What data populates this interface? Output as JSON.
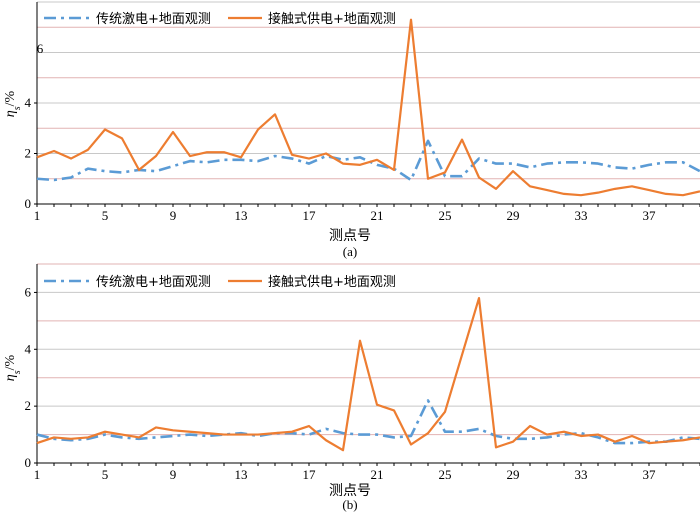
{
  "chart_data": [
    {
      "type": "line",
      "caption": "(a)",
      "xlabel": "测点号",
      "ylabel": "ηs/%",
      "ylabel_main": "η",
      "ylabel_sub": "s",
      "ylabel_unit": "/%",
      "stray_label": "6",
      "ylim": [
        0,
        8
      ],
      "yticks": [
        0,
        2,
        4
      ],
      "xlim": [
        1,
        40
      ],
      "xticks": [
        1,
        5,
        9,
        13,
        17,
        21,
        25,
        29,
        33,
        37
      ],
      "grid": "horizontal",
      "legend": "top-left",
      "series": [
        {
          "name": "传统激电+地面观测",
          "color": "#5b9bd5",
          "style": "dash-dot",
          "x": [
            1,
            2,
            3,
            4,
            5,
            6,
            7,
            8,
            9,
            10,
            11,
            12,
            13,
            14,
            15,
            16,
            17,
            18,
            19,
            20,
            21,
            22,
            23,
            24,
            25,
            26,
            27,
            28,
            29,
            30,
            31,
            32,
            33,
            34,
            35,
            36,
            37,
            38,
            39,
            40
          ],
          "y": [
            1.0,
            0.95,
            1.05,
            1.4,
            1.3,
            1.25,
            1.35,
            1.3,
            1.5,
            1.7,
            1.65,
            1.75,
            1.75,
            1.7,
            1.9,
            1.8,
            1.6,
            1.9,
            1.75,
            1.85,
            1.55,
            1.4,
            0.95,
            2.5,
            1.1,
            1.1,
            1.8,
            1.6,
            1.6,
            1.45,
            1.6,
            1.65,
            1.65,
            1.6,
            1.45,
            1.4,
            1.55,
            1.65,
            1.65,
            1.3
          ]
        },
        {
          "name": "接触式供电+地面观测",
          "color": "#ed7d31",
          "style": "solid",
          "x": [
            1,
            2,
            3,
            4,
            5,
            6,
            7,
            8,
            9,
            10,
            11,
            12,
            13,
            14,
            15,
            16,
            17,
            18,
            19,
            20,
            21,
            22,
            23,
            24,
            25,
            26,
            27,
            28,
            29,
            30,
            31,
            32,
            33,
            34,
            35,
            36,
            37,
            38,
            39,
            40
          ],
          "y": [
            1.85,
            2.1,
            1.8,
            2.15,
            2.95,
            2.6,
            1.35,
            1.9,
            2.85,
            1.9,
            2.05,
            2.05,
            1.85,
            2.95,
            3.55,
            1.95,
            1.8,
            2.0,
            1.6,
            1.55,
            1.75,
            1.35,
            7.3,
            1.0,
            1.25,
            2.55,
            1.05,
            0.6,
            1.3,
            0.7,
            0.55,
            0.4,
            0.35,
            0.45,
            0.6,
            0.7,
            0.55,
            0.4,
            0.35,
            0.5
          ]
        }
      ]
    },
    {
      "type": "line",
      "caption": "(b)",
      "xlabel": "测点号",
      "ylabel": "ηs/%",
      "ylabel_main": "η",
      "ylabel_sub": "s",
      "ylabel_unit": "/%",
      "ylim": [
        0,
        7
      ],
      "yticks": [
        0,
        2,
        4,
        6
      ],
      "xlim": [
        1,
        40
      ],
      "xticks": [
        1,
        5,
        9,
        13,
        17,
        21,
        25,
        29,
        33,
        37
      ],
      "grid": "horizontal",
      "legend": "top-left",
      "series": [
        {
          "name": "传统激电+地面观测",
          "color": "#5b9bd5",
          "style": "dash-dot",
          "x": [
            1,
            2,
            3,
            4,
            5,
            6,
            7,
            8,
            9,
            10,
            11,
            12,
            13,
            14,
            15,
            16,
            17,
            18,
            19,
            20,
            21,
            22,
            23,
            24,
            25,
            26,
            27,
            28,
            29,
            30,
            31,
            32,
            33,
            34,
            35,
            36,
            37,
            38,
            39,
            40
          ],
          "y": [
            1.0,
            0.85,
            0.8,
            0.85,
            1.0,
            0.9,
            0.85,
            0.9,
            0.95,
            1.0,
            0.95,
            1.0,
            1.05,
            0.95,
            1.05,
            1.05,
            1.0,
            1.2,
            1.05,
            1.0,
            1.0,
            0.9,
            0.95,
            2.2,
            1.1,
            1.1,
            1.2,
            0.95,
            0.85,
            0.85,
            0.9,
            1.0,
            1.05,
            0.9,
            0.7,
            0.7,
            0.75,
            0.75,
            0.9,
            0.85
          ]
        },
        {
          "name": "接触式供电+地面观测",
          "color": "#ed7d31",
          "style": "solid",
          "x": [
            1,
            2,
            3,
            4,
            5,
            6,
            7,
            8,
            9,
            10,
            11,
            12,
            13,
            14,
            15,
            16,
            17,
            18,
            19,
            20,
            21,
            22,
            23,
            24,
            25,
            26,
            27,
            28,
            29,
            30,
            31,
            32,
            33,
            34,
            35,
            36,
            37,
            38,
            39,
            40
          ],
          "y": [
            0.7,
            0.9,
            0.85,
            0.9,
            1.1,
            1.0,
            0.9,
            1.25,
            1.15,
            1.1,
            1.05,
            1.0,
            1.0,
            1.0,
            1.05,
            1.1,
            1.3,
            0.8,
            0.45,
            4.3,
            2.05,
            1.85,
            0.65,
            1.05,
            1.8,
            3.8,
            5.8,
            0.55,
            0.75,
            1.3,
            1.0,
            1.1,
            0.95,
            1.0,
            0.75,
            0.95,
            0.7,
            0.75,
            0.8,
            0.9
          ]
        }
      ]
    }
  ]
}
